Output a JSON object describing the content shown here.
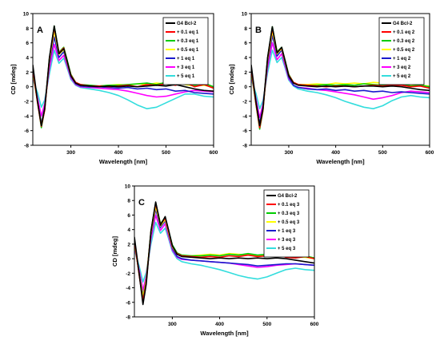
{
  "figure": {
    "panels": [
      {
        "letter": "A",
        "xlabel": "Wavelength [nm]",
        "ylabel": "CD [mdeg]",
        "legend": [
          "G4 Bcl-2",
          "+ 0.1 eq 1",
          "+ 0.3 eq 1",
          "+ 0.5 eq 1",
          "+ 1 eq 1",
          "+ 3 eq 1",
          "+ 5 eq 1"
        ]
      },
      {
        "letter": "B",
        "xlabel": "Wavelength [nm]",
        "ylabel": "CD [mdeg]",
        "legend": [
          "G4 Bcl-2",
          "+ 0.1 eq 2",
          "+ 0.3 eq 2",
          "+ 0.5 eq 2",
          "+ 1 eq 2",
          "+ 3 eq 2",
          "+ 5 eq 2"
        ]
      },
      {
        "letter": "C",
        "xlabel": "Wavelength [nm]",
        "ylabel": "CD [mdeg]",
        "legend": [
          "G4 Bcl-2",
          "+ 0.1 eq 3",
          "+ 0.3 eq 3",
          "+ 0.5 eq 3",
          "+ 1 eq 3",
          "+ 3 eq 3",
          "+ 5 eq 3"
        ]
      }
    ]
  },
  "chart_data": [
    {
      "type": "line",
      "panel": "A",
      "title": "",
      "xlabel": "Wavelength [nm]",
      "ylabel": "CD [mdeg]",
      "xlim": [
        220,
        600
      ],
      "ylim": [
        -8,
        10
      ],
      "xticks": [
        300,
        400,
        500,
        600
      ],
      "yticks": [
        -8,
        -6,
        -4,
        -2,
        0,
        2,
        4,
        6,
        8,
        10
      ],
      "legend_position": "top-right",
      "grid": false,
      "x": [
        220,
        230,
        238,
        245,
        255,
        265,
        275,
        285,
        292,
        300,
        310,
        320,
        340,
        360,
        380,
        400,
        420,
        440,
        460,
        480,
        500,
        520,
        540,
        560,
        580,
        600
      ],
      "series": [
        {
          "name": "G4 Bcl-2",
          "color": "#000000",
          "values": [
            3.0,
            -2.0,
            -5.3,
            -3.0,
            4.0,
            8.3,
            4.5,
            5.2,
            3.6,
            1.5,
            0.5,
            0.2,
            0.1,
            0.0,
            0.1,
            0.0,
            0.1,
            0.0,
            0.1,
            0.2,
            0.1,
            0.3,
            0.0,
            -0.3,
            -0.5,
            -0.6
          ]
        },
        {
          "name": "+ 0.1 eq 1",
          "color": "#ff0000",
          "values": [
            2.5,
            -2.2,
            -5.4,
            -3.2,
            3.8,
            8.1,
            4.6,
            5.3,
            3.5,
            1.6,
            0.6,
            0.3,
            0.1,
            0.1,
            0.0,
            0.1,
            0.2,
            0.0,
            0.3,
            0.2,
            0.4,
            0.2,
            0.6,
            0.0,
            0.3,
            -0.2
          ]
        },
        {
          "name": "+ 0.3 eq 1",
          "color": "#00cc00",
          "values": [
            2.2,
            -2.0,
            -5.6,
            -3.1,
            3.9,
            8.3,
            4.7,
            5.4,
            3.7,
            1.7,
            0.6,
            0.3,
            0.2,
            0.1,
            0.2,
            0.2,
            0.3,
            0.4,
            0.5,
            0.3,
            0.6,
            0.4,
            0.7,
            0.2,
            0.5,
            0.0
          ]
        },
        {
          "name": "+ 0.5 eq 1",
          "color": "#ffff00",
          "values": [
            2.0,
            -2.1,
            -5.2,
            -3.0,
            3.6,
            7.6,
            4.4,
            5.1,
            3.4,
            1.5,
            0.5,
            0.2,
            0.1,
            0.1,
            0.2,
            0.3,
            0.2,
            0.4,
            0.3,
            0.5,
            0.4,
            0.6,
            0.3,
            0.1,
            0.2,
            -0.1
          ]
        },
        {
          "name": "+ 1 eq 1",
          "color": "#1a1acc",
          "values": [
            1.8,
            -2.0,
            -5.0,
            -2.8,
            3.2,
            6.8,
            4.0,
            4.8,
            3.2,
            1.4,
            0.4,
            0.1,
            0.0,
            0.0,
            -0.1,
            -0.2,
            -0.1,
            -0.3,
            -0.2,
            -0.4,
            -0.3,
            -0.6,
            -0.5,
            -0.8,
            -0.9,
            -1.0
          ]
        },
        {
          "name": "+ 3 eq 1",
          "color": "#ff00ff",
          "values": [
            1.5,
            -1.5,
            -4.0,
            -2.3,
            2.5,
            5.8,
            3.6,
            4.3,
            2.9,
            1.2,
            0.3,
            0.0,
            -0.1,
            -0.2,
            -0.3,
            -0.4,
            -0.6,
            -0.9,
            -1.2,
            -1.4,
            -1.3,
            -1.0,
            -0.7,
            -0.5,
            -0.6,
            -0.7
          ]
        },
        {
          "name": "+ 5 eq 1",
          "color": "#33dddd",
          "values": [
            1.0,
            -0.8,
            -2.8,
            -1.8,
            1.8,
            5.0,
            3.2,
            3.9,
            2.6,
            1.0,
            0.2,
            -0.1,
            -0.3,
            -0.5,
            -0.8,
            -1.2,
            -1.8,
            -2.5,
            -3.0,
            -2.8,
            -2.2,
            -1.6,
            -1.0,
            -1.0,
            -1.3,
            -1.4
          ]
        }
      ]
    },
    {
      "type": "line",
      "panel": "B",
      "title": "",
      "xlabel": "Wavelength [nm]",
      "ylabel": "CD [mdeg]",
      "xlim": [
        220,
        600
      ],
      "ylim": [
        -8,
        10
      ],
      "xticks": [
        300,
        400,
        500,
        600
      ],
      "yticks": [
        -8,
        -6,
        -4,
        -2,
        0,
        2,
        4,
        6,
        8,
        10
      ],
      "legend_position": "top-right",
      "grid": false,
      "x": [
        220,
        230,
        238,
        245,
        255,
        265,
        275,
        285,
        292,
        300,
        310,
        320,
        340,
        360,
        380,
        400,
        420,
        440,
        460,
        480,
        500,
        520,
        540,
        560,
        580,
        600
      ],
      "series": [
        {
          "name": "G4 Bcl-2",
          "color": "#000000",
          "values": [
            3.0,
            -2.0,
            -5.3,
            -3.0,
            4.0,
            8.2,
            4.6,
            5.4,
            3.6,
            1.5,
            0.5,
            0.2,
            0.1,
            0.0,
            0.1,
            0.0,
            0.1,
            0.0,
            0.1,
            0.1,
            0.0,
            0.1,
            0.0,
            -0.2,
            -0.4,
            -0.5
          ]
        },
        {
          "name": "+ 0.1 eq 2",
          "color": "#ff0000",
          "values": [
            2.6,
            -2.3,
            -5.6,
            -3.2,
            3.8,
            8.0,
            4.7,
            5.3,
            3.5,
            1.6,
            0.6,
            0.3,
            0.2,
            0.1,
            0.0,
            0.1,
            0.1,
            0.0,
            0.1,
            0.2,
            0.1,
            0.2,
            0.2,
            0.0,
            0.1,
            -0.2
          ]
        },
        {
          "name": "+ 0.3 eq 2",
          "color": "#00cc00",
          "values": [
            2.3,
            -2.4,
            -5.8,
            -3.3,
            3.9,
            8.2,
            4.8,
            5.4,
            3.6,
            1.7,
            0.6,
            0.3,
            0.2,
            0.2,
            0.3,
            0.2,
            0.3,
            0.2,
            0.4,
            0.3,
            0.2,
            0.3,
            0.4,
            0.1,
            0.2,
            0.0
          ]
        },
        {
          "name": "+ 0.5 eq 2",
          "color": "#ffff00",
          "values": [
            2.1,
            -2.2,
            -5.4,
            -3.0,
            3.6,
            7.6,
            4.5,
            5.2,
            3.4,
            1.5,
            0.5,
            0.3,
            0.3,
            0.4,
            0.3,
            0.5,
            0.4,
            0.5,
            0.4,
            0.6,
            0.5,
            0.4,
            0.5,
            0.3,
            0.2,
            0.1
          ]
        },
        {
          "name": "+ 1 eq 2",
          "color": "#1a1acc",
          "values": [
            1.9,
            -2.0,
            -5.0,
            -2.8,
            3.2,
            7.0,
            4.2,
            5.0,
            3.2,
            1.3,
            0.2,
            -0.1,
            -0.3,
            -0.4,
            -0.3,
            -0.5,
            -0.4,
            -0.6,
            -0.5,
            -0.7,
            -0.6,
            -0.8,
            -0.7,
            -0.8,
            -0.9,
            -1.0
          ]
        },
        {
          "name": "+ 3 eq 2",
          "color": "#ff00ff",
          "values": [
            1.5,
            -1.6,
            -4.2,
            -2.4,
            2.6,
            6.0,
            3.7,
            4.5,
            2.9,
            1.1,
            0.2,
            -0.1,
            -0.2,
            -0.4,
            -0.5,
            -0.7,
            -0.9,
            -1.1,
            -1.4,
            -1.7,
            -1.5,
            -1.2,
            -0.8,
            -0.6,
            -0.7,
            -0.8
          ]
        },
        {
          "name": "+ 5 eq 2",
          "color": "#33dddd",
          "values": [
            1.0,
            -0.9,
            -3.0,
            -1.9,
            1.9,
            5.0,
            3.3,
            4.0,
            2.6,
            0.9,
            0.1,
            -0.3,
            -0.6,
            -0.8,
            -1.1,
            -1.5,
            -2.0,
            -2.4,
            -2.8,
            -3.0,
            -2.6,
            -1.9,
            -1.4,
            -1.2,
            -1.4,
            -1.5
          ]
        }
      ]
    },
    {
      "type": "line",
      "panel": "C",
      "title": "",
      "xlabel": "Wavelength [nm]",
      "ylabel": "CD [mdeg]",
      "xlim": [
        220,
        600
      ],
      "ylim": [
        -8,
        10
      ],
      "xticks": [
        300,
        400,
        500,
        600
      ],
      "yticks": [
        -8,
        -6,
        -4,
        -2,
        0,
        2,
        4,
        6,
        8,
        10
      ],
      "legend_position": "top-right",
      "grid": false,
      "x": [
        220,
        230,
        238,
        245,
        255,
        265,
        275,
        285,
        292,
        300,
        310,
        320,
        340,
        360,
        380,
        400,
        420,
        440,
        460,
        480,
        500,
        520,
        540,
        560,
        580,
        600
      ],
      "series": [
        {
          "name": "G4 Bcl-2",
          "color": "#000000",
          "values": [
            3.0,
            -2.0,
            -6.3,
            -3.5,
            3.8,
            7.8,
            4.6,
            5.8,
            4.0,
            1.8,
            0.6,
            0.3,
            0.2,
            0.1,
            0.0,
            0.1,
            0.0,
            0.1,
            0.0,
            0.1,
            0.0,
            0.1,
            0.0,
            -0.2,
            -0.4,
            -0.6
          ]
        },
        {
          "name": "+ 0.1 eq 3",
          "color": "#ff0000",
          "values": [
            2.6,
            -2.2,
            -5.8,
            -3.2,
            3.7,
            7.6,
            4.7,
            5.6,
            3.8,
            1.7,
            0.7,
            0.4,
            0.3,
            0.2,
            0.3,
            0.2,
            0.4,
            0.3,
            0.5,
            0.3,
            0.4,
            0.6,
            0.2,
            0.1,
            0.3,
            0.0
          ]
        },
        {
          "name": "+ 0.3 eq 3",
          "color": "#00cc00",
          "values": [
            2.4,
            -2.1,
            -5.6,
            -3.1,
            3.8,
            7.7,
            4.8,
            5.7,
            3.9,
            1.9,
            0.8,
            0.5,
            0.4,
            0.4,
            0.5,
            0.4,
            0.6,
            0.5,
            0.7,
            0.5,
            0.6,
            0.5,
            0.4,
            0.3,
            0.4,
            0.1
          ]
        },
        {
          "name": "+ 0.5 eq 3",
          "color": "#ffff00",
          "values": [
            2.2,
            -2.0,
            -5.2,
            -2.9,
            3.5,
            7.2,
            4.5,
            5.4,
            3.6,
            1.6,
            0.6,
            0.4,
            0.4,
            0.5,
            0.6,
            0.5,
            0.7,
            0.6,
            0.5,
            0.4,
            0.5,
            0.4,
            0.3,
            0.2,
            0.2,
            0.0
          ]
        },
        {
          "name": "+ 1 eq 3",
          "color": "#1a1acc",
          "values": [
            2.0,
            -1.9,
            -5.0,
            -2.8,
            3.2,
            6.8,
            4.3,
            5.2,
            3.4,
            1.4,
            0.3,
            0.0,
            -0.2,
            -0.3,
            -0.4,
            -0.5,
            -0.6,
            -0.7,
            -0.8,
            -1.0,
            -0.9,
            -0.8,
            -0.7,
            -0.7,
            -0.8,
            -0.9
          ]
        },
        {
          "name": "+ 3 eq 3",
          "color": "#ff00ff",
          "values": [
            1.6,
            -1.5,
            -4.3,
            -2.4,
            2.7,
            6.0,
            3.9,
            4.8,
            3.1,
            1.2,
            0.2,
            -0.1,
            -0.2,
            -0.3,
            -0.4,
            -0.5,
            -0.6,
            -0.8,
            -1.0,
            -1.2,
            -1.1,
            -0.9,
            -0.8,
            -0.7,
            -0.8,
            -0.9
          ]
        },
        {
          "name": "+ 5 eq 3",
          "color": "#33dddd",
          "values": [
            1.2,
            -1.0,
            -3.2,
            -1.9,
            2.0,
            5.0,
            3.5,
            4.2,
            2.8,
            1.0,
            0.0,
            -0.4,
            -0.7,
            -0.9,
            -1.2,
            -1.5,
            -1.9,
            -2.3,
            -2.6,
            -2.8,
            -2.5,
            -2.0,
            -1.5,
            -1.3,
            -1.5,
            -1.6
          ]
        }
      ]
    }
  ]
}
